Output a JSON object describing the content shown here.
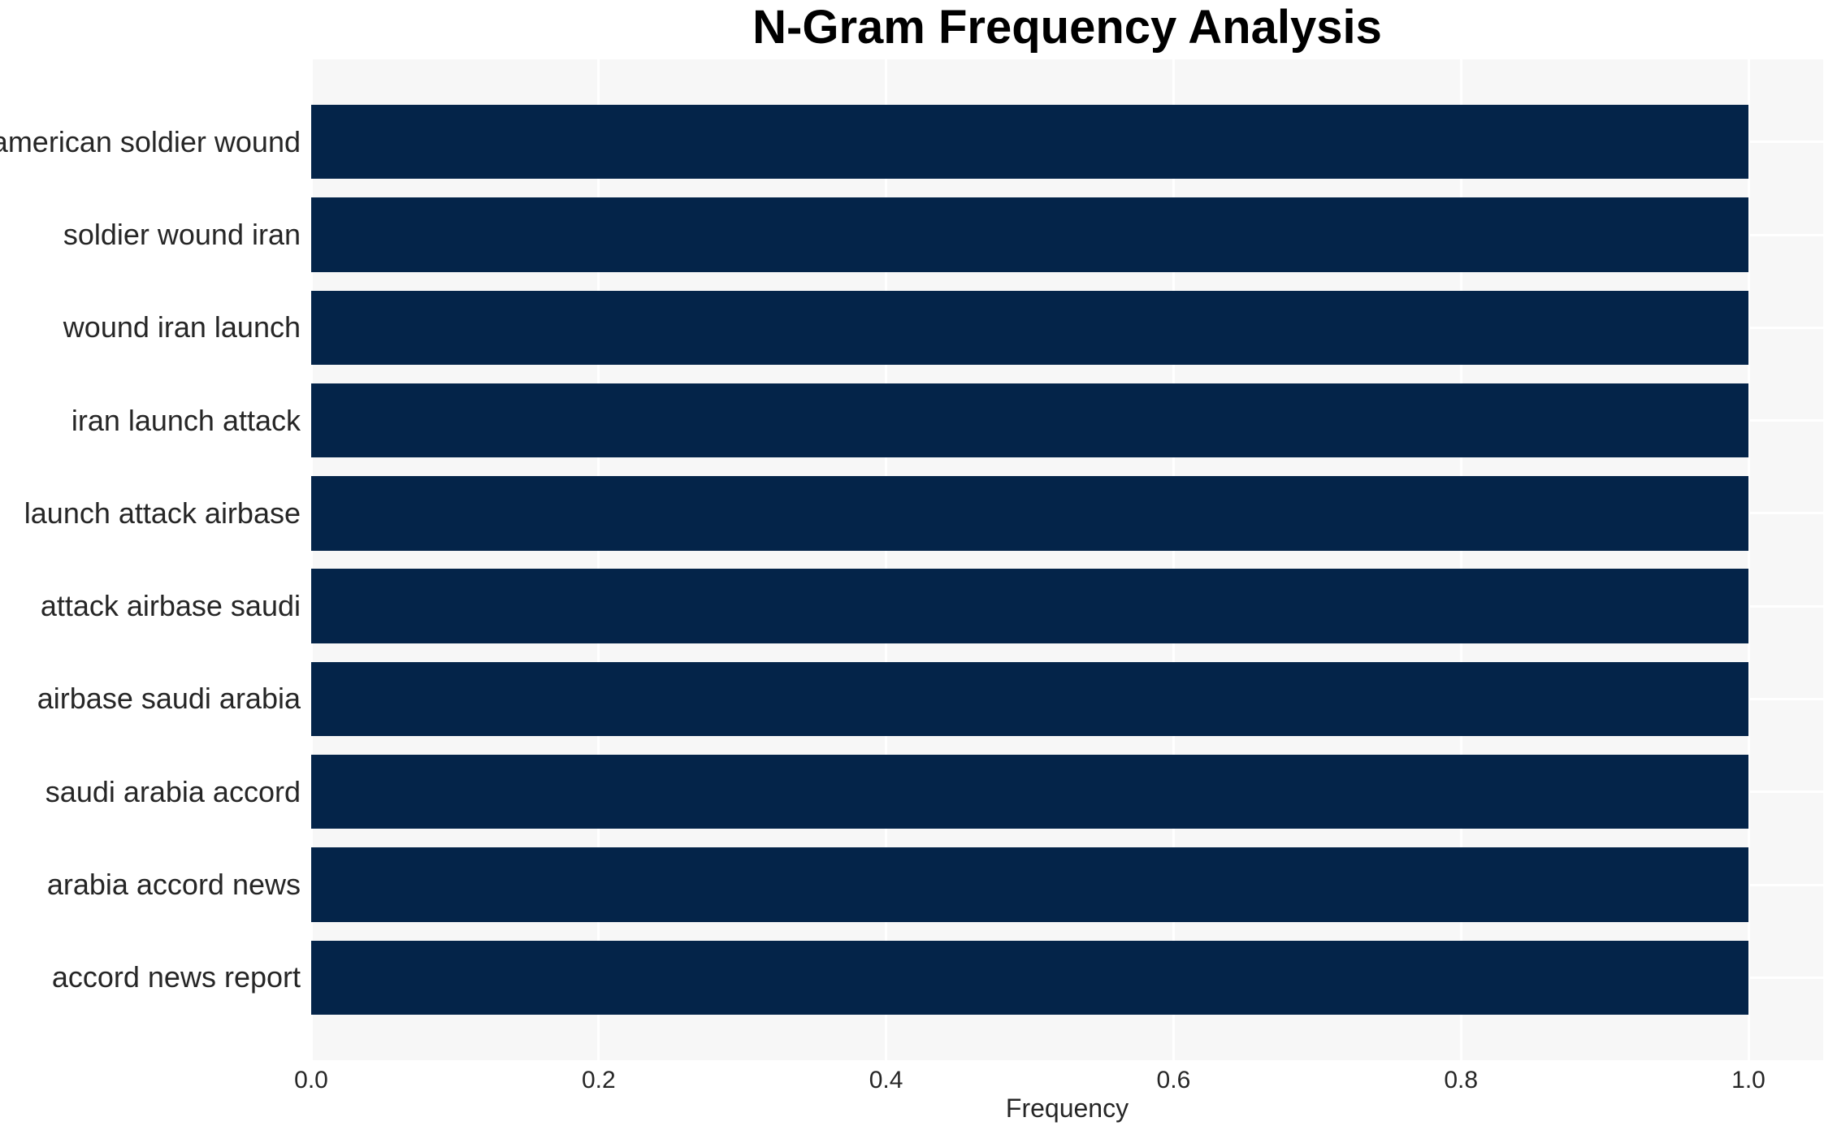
{
  "chart_data": {
    "type": "bar",
    "orientation": "horizontal",
    "title": "N-Gram Frequency Analysis",
    "xlabel": "Frequency",
    "ylabel": "",
    "categories": [
      "american soldier wound",
      "soldier wound iran",
      "wound iran launch",
      "iran launch attack",
      "launch attack airbase",
      "attack airbase saudi",
      "airbase saudi arabia",
      "saudi arabia accord",
      "arabia accord news",
      "accord news report"
    ],
    "values": [
      1.0,
      1.0,
      1.0,
      1.0,
      1.0,
      1.0,
      1.0,
      1.0,
      1.0,
      1.0
    ],
    "xtick_labels": [
      "0.0",
      "0.2",
      "0.4",
      "0.6",
      "0.8",
      "1.0"
    ],
    "xtick_values": [
      0.0,
      0.2,
      0.4,
      0.6,
      0.8,
      1.0
    ],
    "xlim": [
      0,
      1.052
    ],
    "bar_rel_height": 0.8,
    "grid": true,
    "legend_position": "none",
    "colors": {
      "bar": "#042449",
      "plot_background": "#f7f7f7",
      "gridline": "#ffffff",
      "text": "#262626",
      "title_text": "#000000",
      "figure_background": "#ffffff"
    }
  }
}
